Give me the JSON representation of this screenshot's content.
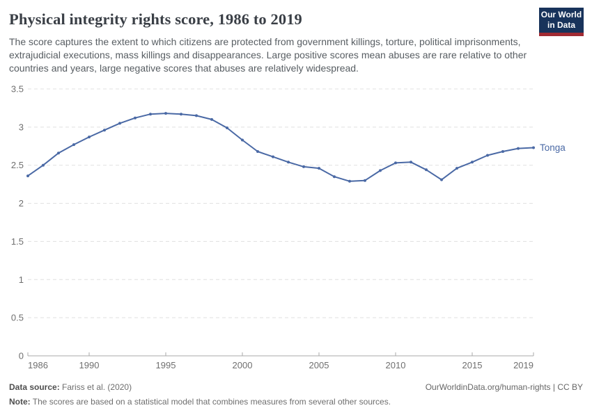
{
  "header": {
    "title": "Physical integrity rights score, 1986 to 2019",
    "subtitle": "The score captures the extent to which citizens are protected from government killings, torture, political imprisonments, extrajudicial executions, mass killings and disappearances. Large positive scores mean abuses are rare relative to other countries and years, large negative scores that abuses are relatively widespread.",
    "logo_line1": "Our World",
    "logo_line2": "in Data",
    "logo_bg_color": "#18335b",
    "logo_accent_color": "#a12a33"
  },
  "chart_data": {
    "type": "line",
    "title": "Physical integrity rights score, 1986 to 2019",
    "x": [
      1986,
      1987,
      1988,
      1989,
      1990,
      1991,
      1992,
      1993,
      1994,
      1995,
      1996,
      1997,
      1998,
      1999,
      2000,
      2001,
      2002,
      2003,
      2004,
      2005,
      2006,
      2007,
      2008,
      2009,
      2010,
      2011,
      2012,
      2013,
      2014,
      2015,
      2016,
      2017,
      2018,
      2019
    ],
    "series": [
      {
        "name": "Tonga",
        "color": "#4a69a5",
        "values": [
          2.36,
          2.5,
          2.66,
          2.77,
          2.87,
          2.96,
          3.05,
          3.12,
          3.17,
          3.18,
          3.17,
          3.15,
          3.1,
          2.99,
          2.83,
          2.68,
          2.61,
          2.54,
          2.48,
          2.46,
          2.35,
          2.29,
          2.3,
          2.43,
          2.53,
          2.54,
          2.44,
          2.31,
          2.46,
          2.54,
          2.63,
          2.68,
          2.72,
          2.73
        ]
      }
    ],
    "x_ticks": [
      1986,
      1990,
      1995,
      2000,
      2005,
      2010,
      2015,
      2019
    ],
    "y_ticks": [
      0,
      0.5,
      1,
      1.5,
      2,
      2.5,
      3,
      3.5
    ],
    "xlim": [
      1986,
      2019
    ],
    "ylim": [
      0,
      3.5
    ],
    "grid": true,
    "grid_color": "#e0e0e0",
    "axis_color": "#a8a8a8",
    "tick_label_color": "#6f6f6f",
    "legend_position": "end-of-line"
  },
  "footer": {
    "datasource_label": "Data source:",
    "datasource_value": "Fariss et al. (2020)",
    "link": "OurWorldinData.org/human-rights | CC BY",
    "note_label": "Note:",
    "note_value": "The scores are based on a statistical model that combines measures from several other sources."
  }
}
